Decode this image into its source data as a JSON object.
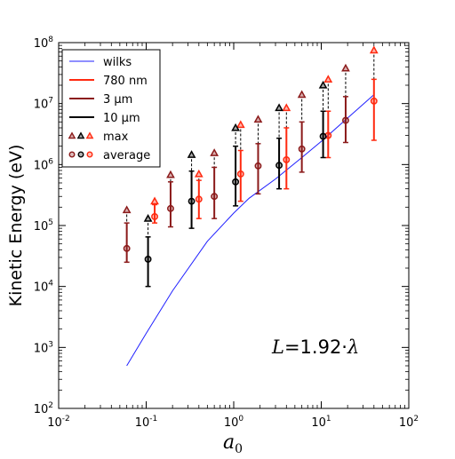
{
  "chart_data": {
    "type": "scatter",
    "title": "",
    "xlabel": "a",
    "xlabel_sub": "0",
    "ylabel": "Kinetic Energy (eV)",
    "x_scale": "log",
    "y_scale": "log",
    "xlim": [
      0.01,
      100
    ],
    "ylim": [
      100,
      100000000
    ],
    "grid": false,
    "legend_position": "top-left",
    "x_ticks": [
      {
        "base": "10",
        "exp": "-2",
        "value": 0.01
      },
      {
        "base": "10",
        "exp": "-1",
        "value": 0.1
      },
      {
        "base": "10",
        "exp": "0",
        "value": 1
      },
      {
        "base": "10",
        "exp": "1",
        "value": 10
      },
      {
        "base": "10",
        "exp": "2",
        "value": 100
      }
    ],
    "y_ticks": [
      {
        "base": "10",
        "exp": "2",
        "value": 100
      },
      {
        "base": "10",
        "exp": "3",
        "value": 1000
      },
      {
        "base": "10",
        "exp": "4",
        "value": 10000
      },
      {
        "base": "10",
        "exp": "5",
        "value": 100000
      },
      {
        "base": "10",
        "exp": "6",
        "value": 1000000
      },
      {
        "base": "10",
        "exp": "7",
        "value": 10000000
      },
      {
        "base": "10",
        "exp": "8",
        "value": 100000000
      }
    ],
    "annotation": {
      "italic": "L",
      "rest": "=1.92·",
      "symbol": "λ"
    },
    "legend": [
      {
        "label": "wilks",
        "kind": "line",
        "color": "#1f1fff"
      },
      {
        "label": "780 nm",
        "kind": "line",
        "color": "#ff2a10"
      },
      {
        "label": "3 μm",
        "kind": "line",
        "color": "#8b1a1a"
      },
      {
        "label": "10 μm",
        "kind": "line",
        "color": "#000000"
      },
      {
        "label": "max",
        "kind": "triangles",
        "colors": [
          "#8b1a1a",
          "#000000",
          "#ff2a10"
        ]
      },
      {
        "label": "average",
        "kind": "circles",
        "colors": [
          "#8b1a1a",
          "#000000",
          "#ff2a10"
        ]
      }
    ],
    "wilks": {
      "color": "#1f1fff",
      "x": [
        0.06,
        0.1,
        0.2,
        0.5,
        1,
        1.5,
        3,
        6,
        10,
        20,
        40
      ],
      "y": [
        500,
        1700,
        8500,
        55000,
        160000,
        280000,
        580000,
        1300000,
        2400000,
        5800000,
        14000000
      ]
    },
    "series": [
      {
        "name": "780 nm",
        "color": "#ff2a10",
        "x": [
          0.125,
          0.4,
          1.2,
          4,
          12,
          40
        ],
        "avg": [
          140000,
          270000,
          700000,
          1200000,
          3000000,
          11000000
        ],
        "low": [
          110000,
          130000,
          250000,
          400000,
          1300000,
          2500000
        ],
        "high": [
          220000,
          550000,
          1700000,
          4000000,
          7500000,
          25000000
        ],
        "max": [
          250000,
          700000,
          4500000,
          8500000,
          25000000,
          75000000
        ]
      },
      {
        "name": "3 μm",
        "color": "#8b1a1a",
        "x": [
          0.06,
          0.19,
          0.6,
          1.9,
          6,
          19
        ],
        "avg": [
          42000,
          190000,
          300000,
          950000,
          1800000,
          5300000
        ],
        "low": [
          25000,
          95000,
          130000,
          330000,
          750000,
          2300000
        ],
        "high": [
          110000,
          520000,
          900000,
          2200000,
          5000000,
          13000000
        ],
        "max": [
          180000,
          680000,
          1550000,
          5500000,
          14000000,
          38000000
        ]
      },
      {
        "name": "10 μm",
        "color": "#000000",
        "x": [
          0.105,
          0.33,
          1.05,
          3.3,
          10.5
        ],
        "avg": [
          28000,
          250000,
          520000,
          970000,
          2900000
        ],
        "low": [
          10000,
          90000,
          210000,
          400000,
          1300000
        ],
        "high": [
          65000,
          780000,
          2000000,
          2700000,
          7500000
        ],
        "max": [
          130000,
          1450000,
          4000000,
          8500000,
          20000000
        ]
      }
    ]
  }
}
